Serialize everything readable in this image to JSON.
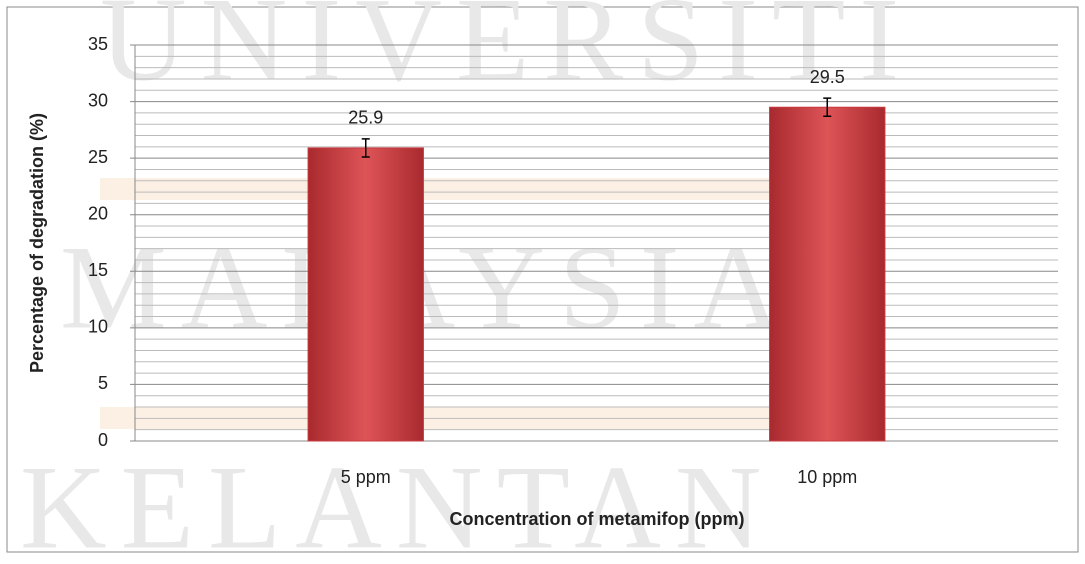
{
  "chart_data": {
    "type": "bar",
    "x_label": "Concentration of metamifop (ppm)",
    "y_label": "Percentage of  degradation (%)",
    "categories": [
      "5 ppm",
      "10 ppm"
    ],
    "values": [
      25.9,
      29.5
    ],
    "errors": [
      0.8,
      0.8
    ],
    "color": "#c8393d",
    "ylim": [
      0,
      35
    ],
    "yticks": [
      0,
      5,
      10,
      15,
      20,
      25,
      30,
      35
    ],
    "grid": true,
    "minor_grid": true,
    "data_labels": true
  },
  "watermark": [
    "UNIVERSITI",
    "MALAYSIA",
    "KELANTAN"
  ]
}
